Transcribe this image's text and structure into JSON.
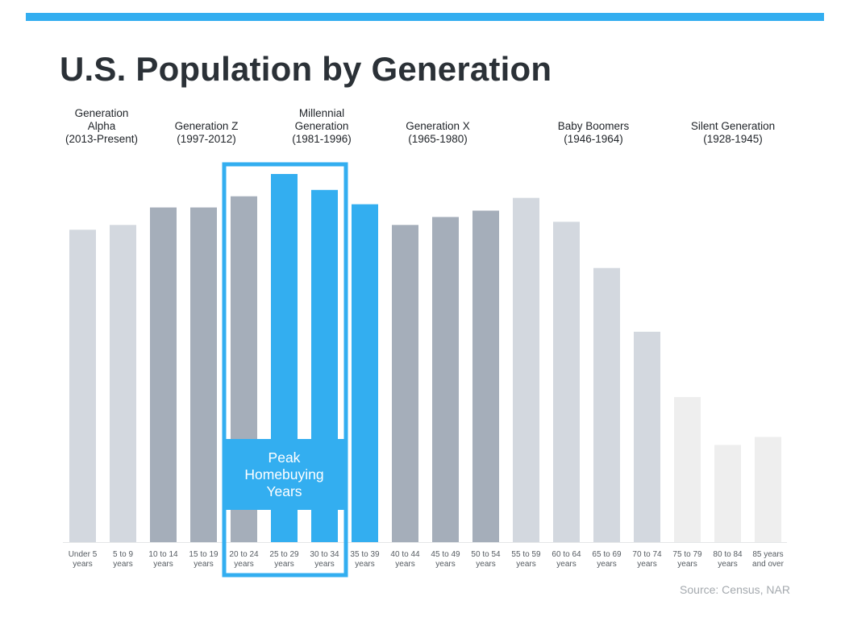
{
  "title": "U.S. Population by Generation",
  "source": "Source: Census, NAR",
  "highlight": {
    "label": "Peak\nHomebuying\nYears",
    "categories": [
      "20 to 24 years",
      "25 to 29 years",
      "30 to 34 years"
    ]
  },
  "colors": {
    "accent": "#33aef0",
    "gen_alpha": "#d3d8df",
    "gen_z": "#a5aeba",
    "millennial": "#33aef0",
    "gen_x": "#a5aeba",
    "boomers": "#d3d8df",
    "silent": "#eeeeee"
  },
  "generations": [
    {
      "lines": [
        "Generation",
        "Alpha",
        "(2013-Present)"
      ],
      "categories": [
        "Under 5 years",
        "5 to 9 years"
      ]
    },
    {
      "lines": [
        "Generation Z",
        "(1997-2012)"
      ],
      "categories": [
        "10 to 14 years",
        "15 to 19 years",
        "20 to 24 years"
      ]
    },
    {
      "lines": [
        "Millennial",
        "Generation",
        "(1981-1996)"
      ],
      "categories": [
        "25 to 29 years",
        "30 to 34 years",
        "35 to 39 years"
      ]
    },
    {
      "lines": [
        "Generation X",
        "(1965-1980)"
      ],
      "categories": [
        "40 to 44 years",
        "45 to 49 years",
        "50 to 54 years"
      ]
    },
    {
      "lines": [
        "Baby Boomers",
        "(1946-1964)"
      ],
      "categories": [
        "55 to 59 years",
        "60 to 64 years",
        "65 to 69 years",
        "70 to 74 years"
      ]
    },
    {
      "lines": [
        "Silent Generation",
        "(1928-1945)"
      ],
      "categories": [
        "75 to 79 years",
        "80 to 84 years",
        "85 years and over"
      ]
    }
  ],
  "chart_data": {
    "type": "bar",
    "title": "U.S. Population by Generation",
    "xlabel": "",
    "ylabel": "",
    "grid": false,
    "legend": "none",
    "categories": [
      [
        "Under 5",
        "years"
      ],
      [
        "5 to 9",
        "years"
      ],
      [
        "10 to 14",
        "years"
      ],
      [
        "15 to 19",
        "years"
      ],
      [
        "20 to 24",
        "years"
      ],
      [
        "25 to 29",
        "years"
      ],
      [
        "30 to 34",
        "years"
      ],
      [
        "35 to 39",
        "years"
      ],
      [
        "40 to 44",
        "years"
      ],
      [
        "45 to 49",
        "years"
      ],
      [
        "50 to 54",
        "years"
      ],
      [
        "55 to 59",
        "years"
      ],
      [
        "60 to 64",
        "years"
      ],
      [
        "65 to 69",
        "years"
      ],
      [
        "70 to 74",
        "years"
      ],
      [
        "75 to 79",
        "years"
      ],
      [
        "80 to 84",
        "years"
      ],
      [
        "85 years",
        "and over"
      ]
    ],
    "values": [
      19.6,
      19.9,
      21.0,
      21.0,
      21.7,
      23.1,
      22.1,
      21.2,
      19.9,
      20.4,
      20.8,
      21.6,
      20.1,
      17.2,
      13.2,
      9.1,
      6.1,
      6.6
    ],
    "colors": [
      "#d3d8df",
      "#d3d8df",
      "#a5aeba",
      "#a5aeba",
      "#a5aeba",
      "#33aef0",
      "#33aef0",
      "#33aef0",
      "#a5aeba",
      "#a5aeba",
      "#a5aeba",
      "#d3d8df",
      "#d3d8df",
      "#d3d8df",
      "#d3d8df",
      "#eeeeee",
      "#eeeeee",
      "#eeeeee"
    ],
    "ylim": [
      0,
      23.1
    ]
  }
}
